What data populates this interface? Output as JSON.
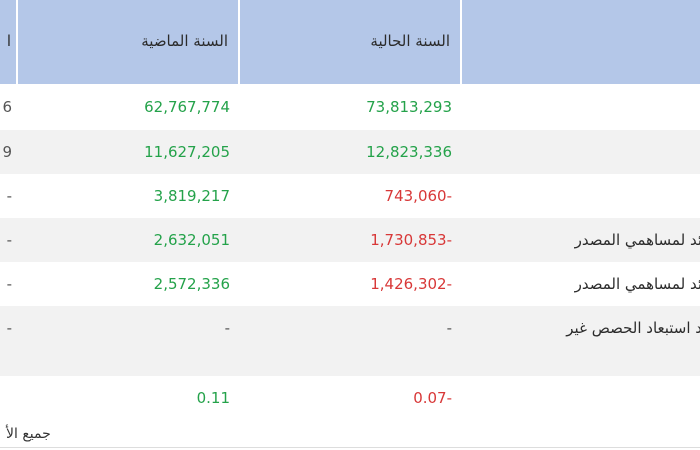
{
  "header": {
    "col_partial": "ا",
    "col_last_year": "السنة الماضية",
    "col_current_year": "السنة الحالية",
    "col_item": ""
  },
  "rows": [
    {
      "label": "",
      "partial": "6",
      "last_year": "62,767,774",
      "current_year": "73,813,293"
    },
    {
      "label": "",
      "partial": "9",
      "last_year": "11,627,205",
      "current_year": "12,823,336"
    },
    {
      "label": "",
      "partial": "-",
      "last_year": "3,819,217",
      "current_year": "743,060-"
    },
    {
      "label": "ئد لمساهمي المصدر",
      "partial": "-",
      "last_year": "2,632,051",
      "current_year": "1,730,853-"
    },
    {
      "label": "ئد لمساهمي المصدر",
      "partial": "-",
      "last_year": "2,572,336",
      "current_year": "1,426,302-"
    },
    {
      "label": "د استبعاد الحصص غير",
      "partial": "-",
      "last_year": "-",
      "current_year": "-"
    },
    {
      "label": "",
      "partial": "",
      "last_year": "0.11",
      "current_year": "0.07-"
    }
  ],
  "footnote": "جميع الأ",
  "colors": {
    "header_bg": "#b4c7e8",
    "positive": "#24a24a",
    "negative": "#d83838",
    "row_shade": "#f2f2f2"
  }
}
